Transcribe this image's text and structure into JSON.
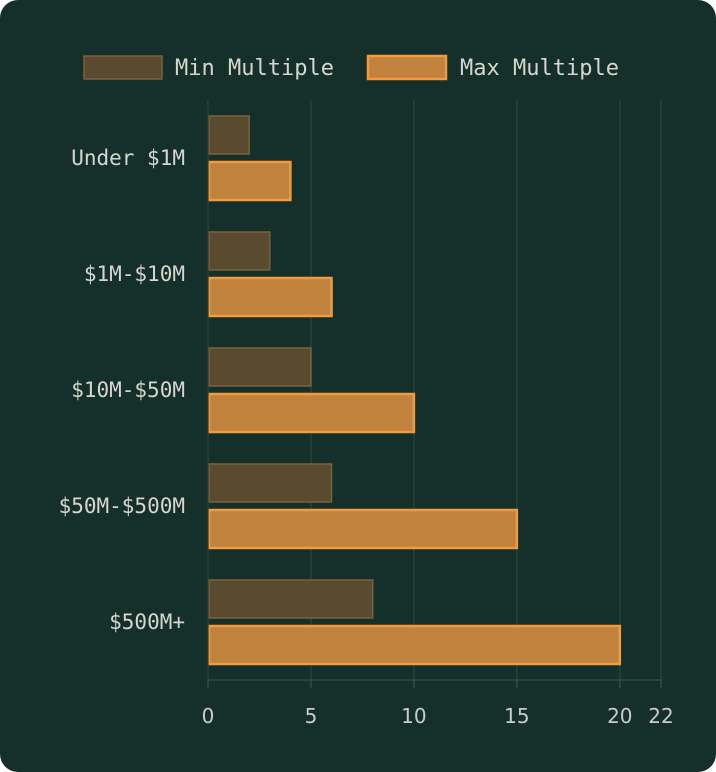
{
  "chart_data": {
    "type": "bar",
    "orientation": "horizontal",
    "categories": [
      "Under $1M",
      "$1M-$10M",
      "$10M-$50M",
      "$50M-$500M",
      "$500M+"
    ],
    "series": [
      {
        "name": "Min Multiple",
        "values": [
          2,
          3,
          5,
          6,
          8
        ],
        "fill": "#5a4a30",
        "stroke": "#7a6337"
      },
      {
        "name": "Max Multiple",
        "values": [
          4,
          6,
          10,
          15,
          20
        ],
        "fill": "#c0823d",
        "stroke": "#f39a3c"
      }
    ],
    "xlim": [
      0,
      22
    ],
    "xticks": [
      0,
      5,
      10,
      15,
      20,
      22
    ],
    "grid": true,
    "legend": "top-center",
    "background": "#15302b"
  }
}
